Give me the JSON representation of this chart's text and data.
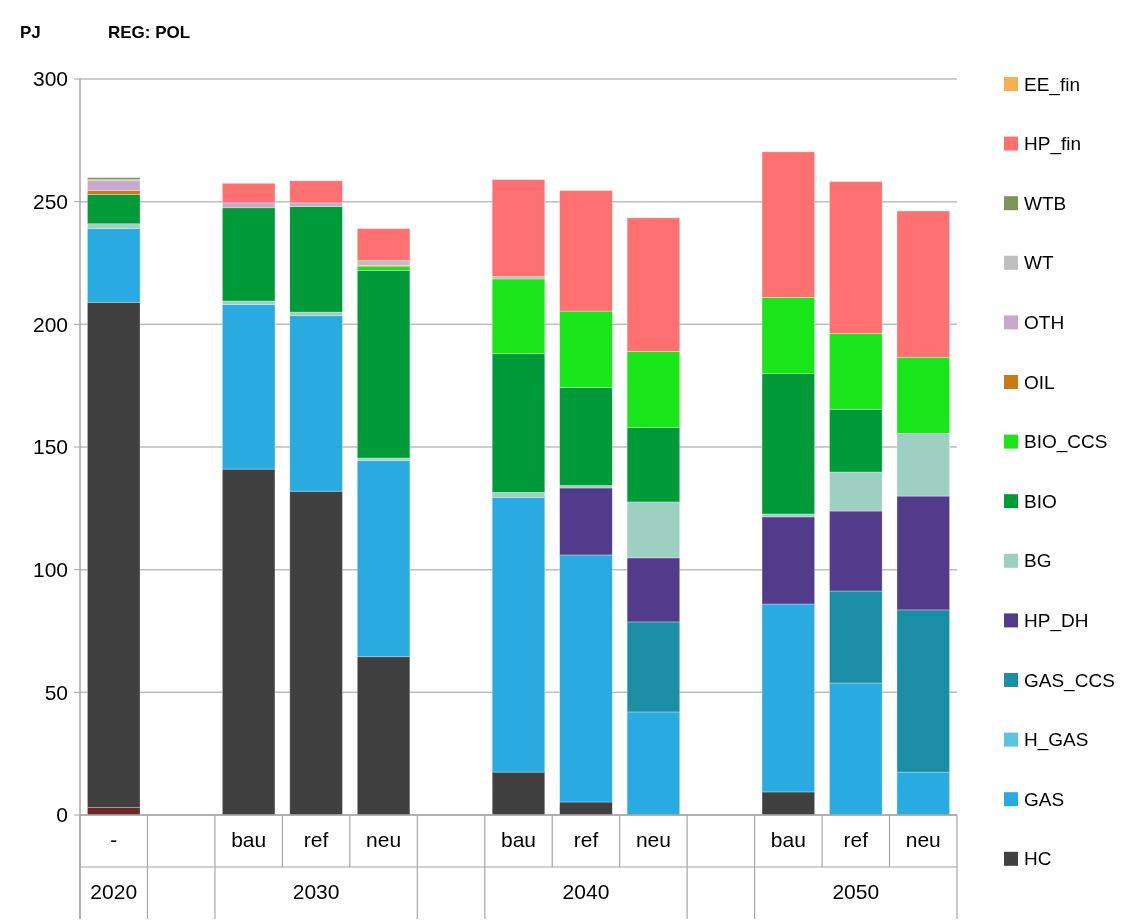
{
  "chart_data": {
    "type": "bar",
    "title": "REG: POL",
    "ylabel": "PJ",
    "stacked": true,
    "categories": [
      "-",
      null,
      "bau",
      "ref",
      "neu",
      null,
      "bau",
      "ref",
      "neu",
      null,
      "bau",
      "ref",
      "neu"
    ],
    "annotations": [
      "2020",
      "2030",
      "2040",
      "2050"
    ],
    "ylim": [
      0,
      300
    ],
    "yticks": [
      0,
      50,
      100,
      150,
      200,
      250,
      300
    ],
    "grid": "y",
    "legend": "right",
    "series": [
      {
        "color": "#6b2a2a",
        "values": [
          3,
          null,
          null,
          null,
          null,
          null,
          null,
          null,
          null,
          null,
          null,
          null,
          null
        ]
      },
      {
        "name": "HC",
        "color": "#404040",
        "values": [
          206,
          null,
          141,
          132,
          64.5,
          null,
          17.5,
          5.3,
          null,
          null,
          9.4,
          null,
          null
        ]
      },
      {
        "name": "GAS",
        "color": "#29abe2",
        "values": [
          30,
          null,
          67,
          71.5,
          80,
          null,
          112,
          100.7,
          42,
          null,
          76.6,
          53.8,
          17.5
        ]
      },
      {
        "name": "H_GAS",
        "color": "#5bc4e0",
        "values": [
          null,
          null,
          null,
          null,
          null,
          null,
          null,
          null,
          null,
          null,
          null,
          null,
          null
        ]
      },
      {
        "name": "GAS_CCS",
        "color": "#1b8ea6",
        "values": [
          null,
          null,
          null,
          null,
          null,
          null,
          null,
          null,
          36.7,
          null,
          null,
          37.5,
          66.1
        ]
      },
      {
        "name": "HP_DH",
        "color": "#533b8c",
        "values": [
          null,
          null,
          null,
          null,
          null,
          null,
          null,
          27.3,
          26.1,
          null,
          35.5,
          32.6,
          46.4
        ]
      },
      {
        "name": "BG",
        "color": "#9dd0c0",
        "values": [
          2,
          null,
          1.5,
          1.5,
          1,
          null,
          2,
          1,
          22.8,
          null,
          1.2,
          15.9,
          25.6
        ]
      },
      {
        "name": "BIO",
        "color": "#009a38",
        "values": [
          12,
          null,
          38,
          43,
          76.5,
          null,
          56.5,
          40,
          30.3,
          null,
          57.2,
          25.6,
          null
        ]
      },
      {
        "name": "BIO_CCS",
        "color": "#19e619",
        "values": [
          null,
          null,
          null,
          null,
          1.5,
          null,
          30.5,
          31.1,
          31,
          null,
          31.1,
          30.8,
          31
        ]
      },
      {
        "name": "OIL",
        "color": "#c87a1a",
        "values": [
          1.5,
          null,
          null,
          null,
          0.5,
          null,
          null,
          null,
          null,
          null,
          null,
          null,
          null
        ]
      },
      {
        "name": "OTH",
        "color": "#c8a8cc",
        "values": [
          4,
          null,
          2,
          1.5,
          null,
          null,
          null,
          null,
          null,
          null,
          null,
          null,
          null
        ]
      },
      {
        "name": "WT",
        "color": "#bfbfbf",
        "values": [
          0.5,
          null,
          null,
          null,
          2,
          null,
          1,
          null,
          null,
          null,
          null,
          null,
          null
        ]
      },
      {
        "name": "WTB",
        "color": "#7e9655",
        "values": [
          0.8,
          null,
          null,
          null,
          null,
          null,
          null,
          null,
          null,
          null,
          null,
          null,
          null
        ]
      },
      {
        "name": "HP_fin",
        "color": "#ff7070",
        "values": [
          null,
          null,
          8,
          9,
          13,
          null,
          39.5,
          49.1,
          54.5,
          null,
          59.3,
          62,
          59.6
        ]
      },
      {
        "name": "EE_fin",
        "color": "#f5b050",
        "values": [
          null,
          null,
          null,
          null,
          null,
          null,
          null,
          null,
          null,
          null,
          null,
          null,
          null
        ]
      }
    ]
  }
}
